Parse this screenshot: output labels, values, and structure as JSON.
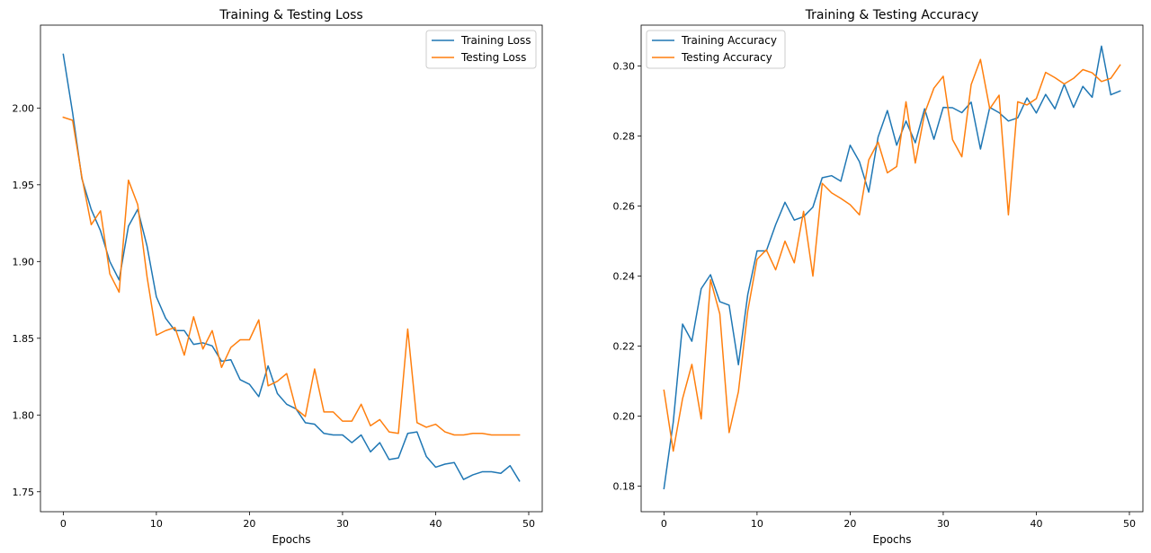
{
  "chart_data": [
    {
      "type": "line",
      "title": "Training & Testing Loss",
      "xlabel": "Epochs",
      "ylabel": "",
      "xlim": [
        -2.45,
        51.45
      ],
      "ylim": [
        1.737,
        2.054
      ],
      "xticks": [
        0,
        10,
        20,
        30,
        40,
        50
      ],
      "yticks": [
        1.75,
        1.8,
        1.85,
        1.9,
        1.95,
        2.0
      ],
      "ytick_decimals": 2,
      "grid": false,
      "legend_position": "upper right",
      "series": [
        {
          "name": "Training Loss",
          "color": "#1f77b4",
          "x": [
            0,
            1,
            2,
            3,
            4,
            5,
            6,
            7,
            8,
            9,
            10,
            11,
            12,
            13,
            14,
            15,
            16,
            17,
            18,
            19,
            20,
            21,
            22,
            23,
            24,
            25,
            26,
            27,
            28,
            29,
            30,
            31,
            32,
            33,
            34,
            35,
            36,
            37,
            38,
            39,
            40,
            41,
            42,
            43,
            44,
            45,
            46,
            47,
            48,
            49
          ],
          "values": [
            2.035,
            1.997,
            1.954,
            1.934,
            1.92,
            1.9,
            1.888,
            1.923,
            1.934,
            1.91,
            1.877,
            1.863,
            1.855,
            1.855,
            1.846,
            1.847,
            1.845,
            1.835,
            1.836,
            1.823,
            1.82,
            1.812,
            1.832,
            1.814,
            1.807,
            1.804,
            1.795,
            1.794,
            1.788,
            1.787,
            1.787,
            1.782,
            1.787,
            1.776,
            1.782,
            1.771,
            1.772,
            1.788,
            1.789,
            1.773,
            1.766,
            1.768,
            1.769,
            1.758,
            1.761,
            1.763,
            1.763,
            1.762,
            1.767,
            1.757
          ]
        },
        {
          "name": "Testing Loss",
          "color": "#ff7f0e",
          "x": [
            0,
            1,
            2,
            3,
            4,
            5,
            6,
            7,
            8,
            9,
            10,
            11,
            12,
            13,
            14,
            15,
            16,
            17,
            18,
            19,
            20,
            21,
            22,
            23,
            24,
            25,
            26,
            27,
            28,
            29,
            30,
            31,
            32,
            33,
            34,
            35,
            36,
            37,
            38,
            39,
            40,
            41,
            42,
            43,
            44,
            45,
            46,
            47,
            48,
            49
          ],
          "values": [
            1.994,
            1.992,
            1.955,
            1.924,
            1.933,
            1.892,
            1.88,
            1.953,
            1.937,
            1.89,
            1.852,
            1.855,
            1.857,
            1.839,
            1.864,
            1.843,
            1.855,
            1.831,
            1.844,
            1.849,
            1.849,
            1.862,
            1.819,
            1.822,
            1.827,
            1.804,
            1.799,
            1.83,
            1.802,
            1.802,
            1.796,
            1.796,
            1.807,
            1.793,
            1.797,
            1.789,
            1.788,
            1.856,
            1.795,
            1.792,
            1.794,
            1.789,
            1.787,
            1.787,
            1.788,
            1.788,
            1.787,
            1.787,
            1.787,
            1.787
          ]
        }
      ]
    },
    {
      "type": "line",
      "title": "Training & Testing Accuracy",
      "xlabel": "Epochs",
      "ylabel": "",
      "xlim": [
        -2.45,
        51.45
      ],
      "ylim": [
        0.1727,
        0.3117
      ],
      "xticks": [
        0,
        10,
        20,
        30,
        40,
        50
      ],
      "yticks": [
        0.18,
        0.2,
        0.22,
        0.24,
        0.26,
        0.28,
        0.3
      ],
      "ytick_decimals": 2,
      "grid": false,
      "legend_position": "upper left",
      "series": [
        {
          "name": "Training Accuracy",
          "color": "#1f77b4",
          "x": [
            0,
            1,
            2,
            3,
            4,
            5,
            6,
            7,
            8,
            9,
            10,
            11,
            12,
            13,
            14,
            15,
            16,
            17,
            18,
            19,
            20,
            21,
            22,
            23,
            24,
            25,
            26,
            27,
            28,
            29,
            30,
            31,
            32,
            33,
            34,
            35,
            36,
            37,
            38,
            39,
            40,
            41,
            42,
            43,
            44,
            45,
            46,
            47,
            48,
            49
          ],
          "values": [
            0.1793,
            0.1983,
            0.2263,
            0.2214,
            0.2364,
            0.2404,
            0.2327,
            0.2317,
            0.2147,
            0.2347,
            0.2472,
            0.2472,
            0.2547,
            0.2611,
            0.256,
            0.257,
            0.2597,
            0.2681,
            0.2687,
            0.2671,
            0.2774,
            0.2727,
            0.264,
            0.2797,
            0.2873,
            0.2774,
            0.2843,
            0.2781,
            0.2878,
            0.2791,
            0.2882,
            0.2881,
            0.2867,
            0.2897,
            0.2763,
            0.2882,
            0.2867,
            0.2843,
            0.2852,
            0.2909,
            0.2866,
            0.2919,
            0.2878,
            0.2948,
            0.2882,
            0.2942,
            0.2911,
            0.3057,
            0.2918,
            0.2929
          ]
        },
        {
          "name": "Testing Accuracy",
          "color": "#ff7f0e",
          "x": [
            0,
            1,
            2,
            3,
            4,
            5,
            6,
            7,
            8,
            9,
            10,
            11,
            12,
            13,
            14,
            15,
            16,
            17,
            18,
            19,
            20,
            21,
            22,
            23,
            24,
            25,
            26,
            27,
            28,
            29,
            30,
            31,
            32,
            33,
            34,
            35,
            36,
            37,
            38,
            39,
            40,
            41,
            42,
            43,
            44,
            45,
            46,
            47,
            48,
            49
          ],
          "values": [
            0.2074,
            0.19,
            0.205,
            0.2148,
            0.1992,
            0.239,
            0.2292,
            0.1953,
            0.207,
            0.23,
            0.2448,
            0.2475,
            0.2418,
            0.25,
            0.2438,
            0.2585,
            0.24,
            0.2665,
            0.2638,
            0.2622,
            0.2604,
            0.2575,
            0.2732,
            0.2783,
            0.2695,
            0.2713,
            0.2898,
            0.2723,
            0.2865,
            0.2937,
            0.2971,
            0.279,
            0.2741,
            0.2947,
            0.3019,
            0.2878,
            0.2917,
            0.2575,
            0.2898,
            0.2889,
            0.2907,
            0.2982,
            0.2967,
            0.2949,
            0.2965,
            0.299,
            0.2981,
            0.2956,
            0.2965,
            0.3003
          ]
        }
      ]
    }
  ]
}
